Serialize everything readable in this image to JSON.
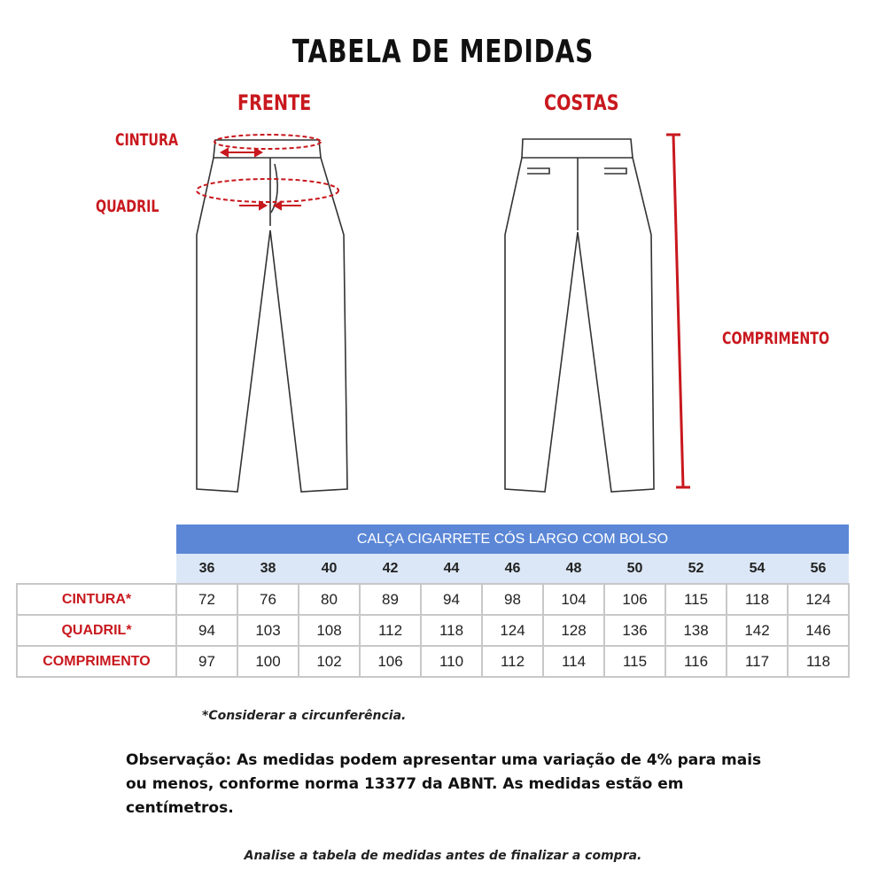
{
  "title": "TABELA DE MEDIDAS",
  "diagram": {
    "front_label": "FRENTE",
    "back_label": "COSTAS",
    "waist_label": "CINTURA",
    "hip_label": "QUADRIL",
    "length_label": "COMPRIMENTO",
    "accent_color": "#c8181e"
  },
  "table": {
    "title": "CALÇA CIGARRETE CÓS LARGO COM BOLSO",
    "header_color": "#5b87d6",
    "sizes": [
      "36",
      "38",
      "40",
      "42",
      "44",
      "46",
      "48",
      "50",
      "52",
      "54",
      "56"
    ],
    "rows": [
      {
        "label": "CINTURA*",
        "values": [
          "72",
          "76",
          "80",
          "89",
          "94",
          "98",
          "104",
          "106",
          "115",
          "118",
          "124"
        ]
      },
      {
        "label": "QUADRIL*",
        "values": [
          "94",
          "103",
          "108",
          "112",
          "118",
          "124",
          "128",
          "136",
          "138",
          "142",
          "146"
        ]
      },
      {
        "label": "COMPRIMENTO",
        "values": [
          "97",
          "100",
          "102",
          "106",
          "110",
          "112",
          "114",
          "115",
          "116",
          "117",
          "118"
        ]
      }
    ]
  },
  "note": "*Considerar a circunferência.",
  "observation": "Observação: As medidas podem apresentar uma variação de 4% para mais ou menos, conforme norma 13377 da ABNT. As medidas estão em centímetros.",
  "footer": "Analise a tabela de medidas antes de finalizar a compra."
}
